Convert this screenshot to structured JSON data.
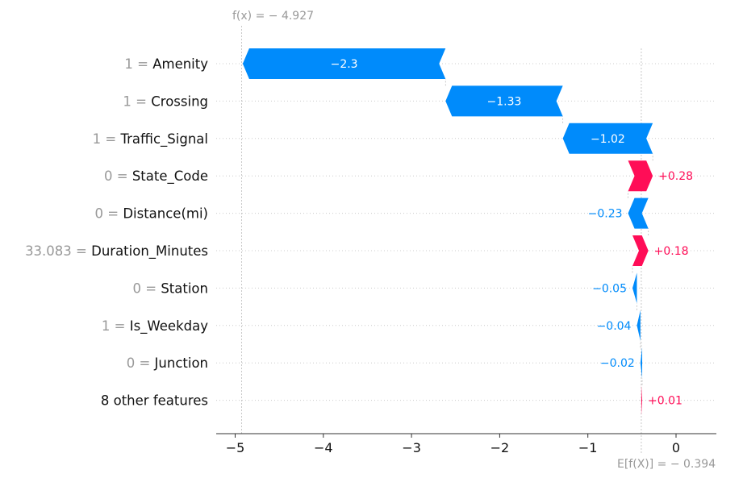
{
  "chart_data": {
    "type": "bar",
    "subtype": "waterfall",
    "base_value": -0.394,
    "base_label": "E[f(X)] = − 0.394",
    "output_value": -4.927,
    "output_label": "f(x) = − 4.927",
    "xlim": [
      -5.25,
      0.5
    ],
    "xticks": [
      -5,
      -4,
      -3,
      -2,
      -1,
      0
    ],
    "xtick_labels": [
      "−5",
      "−4",
      "−3",
      "−2",
      "−1",
      "0"
    ],
    "grid": "horizontal dotted",
    "features": [
      {
        "value": "1",
        "name": "Amenity",
        "contribution": -2.3,
        "label": "−2.3"
      },
      {
        "value": "1",
        "name": "Crossing",
        "contribution": -1.33,
        "label": "−1.33"
      },
      {
        "value": "1",
        "name": "Traffic_Signal",
        "contribution": -1.02,
        "label": "−1.02"
      },
      {
        "value": "0",
        "name": "State_Code",
        "contribution": 0.28,
        "label": "+0.28"
      },
      {
        "value": "0",
        "name": "Distance(mi)",
        "contribution": -0.23,
        "label": "−0.23"
      },
      {
        "value": "33.083",
        "name": "Duration_Minutes",
        "contribution": 0.18,
        "label": "+0.18"
      },
      {
        "value": "0",
        "name": "Station",
        "contribution": -0.05,
        "label": "−0.05"
      },
      {
        "value": "1",
        "name": "Is_Weekday",
        "contribution": -0.04,
        "label": "−0.04"
      },
      {
        "value": "0",
        "name": "Junction",
        "contribution": -0.02,
        "label": "−0.02"
      },
      {
        "value": "",
        "name": "8 other features",
        "contribution": 0.01,
        "label": "+0.01"
      }
    ],
    "colors": {
      "positive": "#ff0d57",
      "negative": "#008bfb",
      "muted": "#999999"
    }
  }
}
